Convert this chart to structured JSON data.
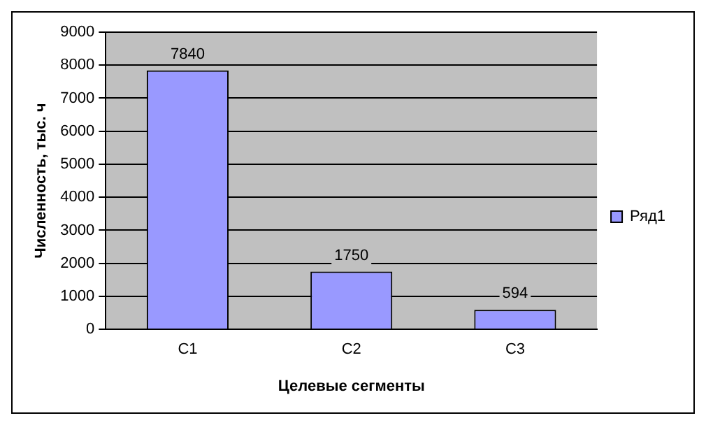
{
  "chart_data": {
    "type": "bar",
    "xlabel": "Целевые сегменты",
    "ylabel": "Численность, тыс. ч",
    "categories": [
      "C1",
      "C2",
      "C3"
    ],
    "series": [
      {
        "name": "Ряд1",
        "color": "#9999ff",
        "values": [
          7840,
          1750,
          594
        ]
      }
    ],
    "ylim": [
      0,
      9000
    ],
    "yticks": [
      0,
      1000,
      2000,
      3000,
      4000,
      5000,
      6000,
      7000,
      8000,
      9000
    ],
    "grid": "y",
    "legend": "right",
    "data_labels": true
  }
}
